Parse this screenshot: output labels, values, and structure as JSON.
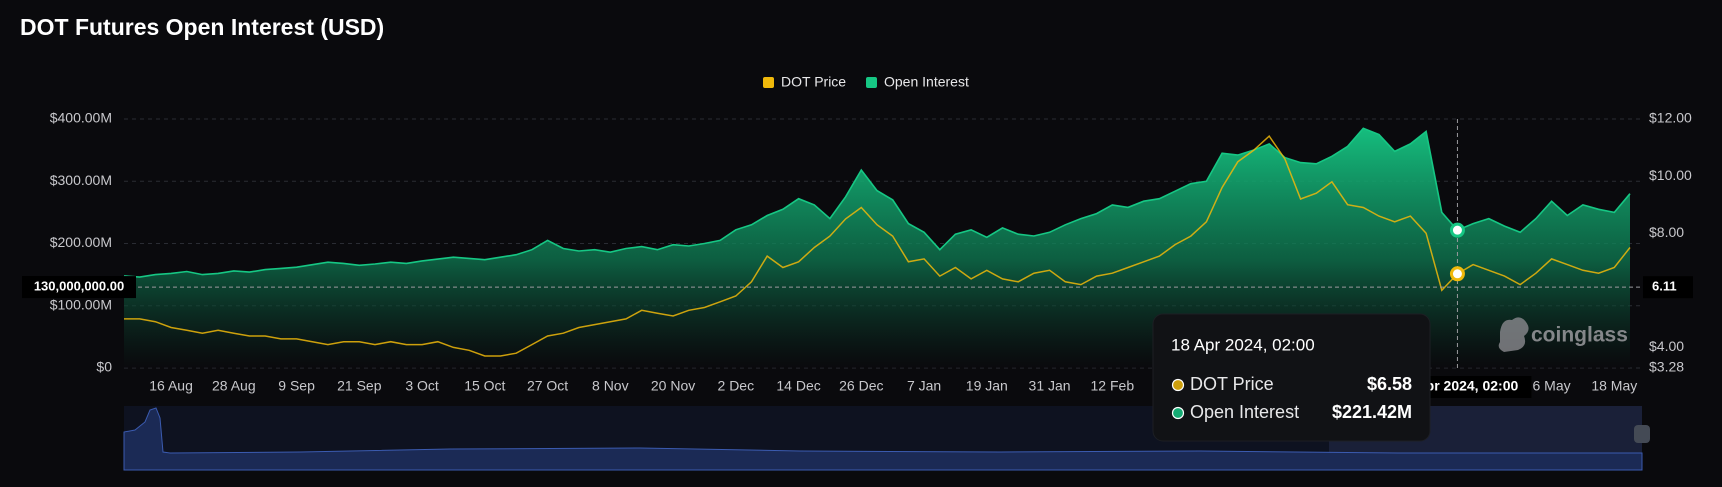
{
  "chart_data": {
    "type": "combo",
    "title": "DOT Futures Open Interest (USD)",
    "watermark": "coinglass",
    "categories": [
      null,
      null,
      null,
      "16 Aug",
      null,
      null,
      null,
      "28 Aug",
      null,
      null,
      null,
      "9 Sep",
      null,
      null,
      null,
      "21 Sep",
      null,
      null,
      null,
      "3 Oct",
      null,
      null,
      null,
      "15 Oct",
      null,
      null,
      null,
      "27 Oct",
      null,
      null,
      null,
      "8 Nov",
      null,
      null,
      null,
      "20 Nov",
      null,
      null,
      null,
      "2 Dec",
      null,
      null,
      null,
      "14 Dec",
      null,
      null,
      null,
      "26 Dec",
      null,
      null,
      null,
      "7 Jan",
      null,
      null,
      null,
      "19 Jan",
      null,
      null,
      null,
      "31 Jan",
      null,
      null,
      null,
      "12 Feb",
      null,
      null,
      null,
      null,
      null,
      null,
      null,
      null,
      null,
      null,
      null,
      null,
      null,
      null,
      null,
      null,
      null,
      null,
      null,
      null,
      null,
      null,
      null,
      null,
      null,
      null,
      null,
      "6 May",
      null,
      null,
      null,
      "18 May",
      null
    ],
    "series": [
      {
        "name": "DOT Price",
        "type": "line",
        "axis": "y2",
        "color": "#f0b90b",
        "values": [
          5.0,
          5.0,
          4.9,
          4.7,
          4.6,
          4.5,
          4.6,
          4.5,
          4.4,
          4.4,
          4.3,
          4.3,
          4.2,
          4.1,
          4.2,
          4.2,
          4.1,
          4.2,
          4.1,
          4.1,
          4.2,
          4.0,
          3.9,
          3.7,
          3.7,
          3.8,
          4.1,
          4.4,
          4.5,
          4.7,
          4.8,
          4.9,
          5.0,
          5.3,
          5.2,
          5.1,
          5.3,
          5.4,
          5.6,
          5.8,
          6.3,
          7.2,
          6.8,
          7.0,
          7.5,
          7.9,
          8.5,
          8.9,
          8.3,
          7.9,
          7.0,
          7.1,
          6.5,
          6.8,
          6.4,
          6.7,
          6.4,
          6.3,
          6.6,
          6.7,
          6.3,
          6.2,
          6.5,
          6.6,
          6.8,
          7.0,
          7.2,
          7.6,
          7.9,
          8.4,
          9.6,
          10.5,
          10.9,
          11.4,
          10.6,
          9.2,
          9.4,
          9.8,
          9.0,
          8.9,
          8.6,
          8.4,
          8.6,
          8.0,
          6.0,
          6.58,
          6.9,
          6.7,
          6.5,
          6.2,
          6.6,
          7.1,
          6.9,
          6.7,
          6.6,
          6.8,
          7.5
        ]
      },
      {
        "name": "Open Interest",
        "type": "area",
        "axis": "y",
        "color": "#16c784",
        "values": [
          148000000,
          146000000,
          150000000,
          152000000,
          155000000,
          150000000,
          152000000,
          156000000,
          154000000,
          158000000,
          160000000,
          162000000,
          166000000,
          170000000,
          168000000,
          165000000,
          167000000,
          170000000,
          168000000,
          172000000,
          175000000,
          178000000,
          176000000,
          174000000,
          178000000,
          182000000,
          190000000,
          205000000,
          192000000,
          188000000,
          190000000,
          186000000,
          192000000,
          195000000,
          190000000,
          198000000,
          196000000,
          200000000,
          205000000,
          222000000,
          230000000,
          245000000,
          255000000,
          272000000,
          262000000,
          240000000,
          275000000,
          318000000,
          285000000,
          270000000,
          232000000,
          218000000,
          190000000,
          215000000,
          222000000,
          210000000,
          225000000,
          215000000,
          212000000,
          218000000,
          230000000,
          240000000,
          248000000,
          262000000,
          258000000,
          268000000,
          272000000,
          284000000,
          296000000,
          300000000,
          345000000,
          342000000,
          350000000,
          360000000,
          338000000,
          330000000,
          328000000,
          340000000,
          356000000,
          385000000,
          375000000,
          348000000,
          360000000,
          380000000,
          250000000,
          221420000,
          232000000,
          240000000,
          228000000,
          218000000,
          240000000,
          268000000,
          245000000,
          262000000,
          255000000,
          250000000,
          280000000
        ]
      }
    ],
    "ylim": [
      0,
      400000000
    ],
    "yticks": [
      {
        "value": 0,
        "label": "$0"
      },
      {
        "value": 100000000,
        "label": "$100.00M"
      },
      {
        "value": 200000000,
        "label": "$200.00M"
      },
      {
        "value": 300000000,
        "label": "$300.00M"
      },
      {
        "value": 400000000,
        "label": "$400.00M"
      }
    ],
    "y2lim": [
      3.28,
      12
    ],
    "y2ticks": [
      {
        "value": 3.28,
        "label": "$3.28"
      },
      {
        "value": 4,
        "label": "$4.00"
      },
      {
        "value": 8,
        "label": "$8.00"
      },
      {
        "value": 10,
        "label": "$10.00"
      },
      {
        "value": 12,
        "label": "$12.00"
      }
    ],
    "grid": true,
    "legend": "top",
    "crosshair": {
      "y": {
        "value": 130000000,
        "label": "130,000,000.00"
      },
      "y2": {
        "value": 6.11,
        "label": "6.11"
      }
    },
    "tooltip": {
      "title": "18 Apr 2024, 02:00",
      "values": [
        6.58,
        221420000
      ],
      "value_labels": [
        "$6.58",
        "$221.42M"
      ]
    }
  }
}
